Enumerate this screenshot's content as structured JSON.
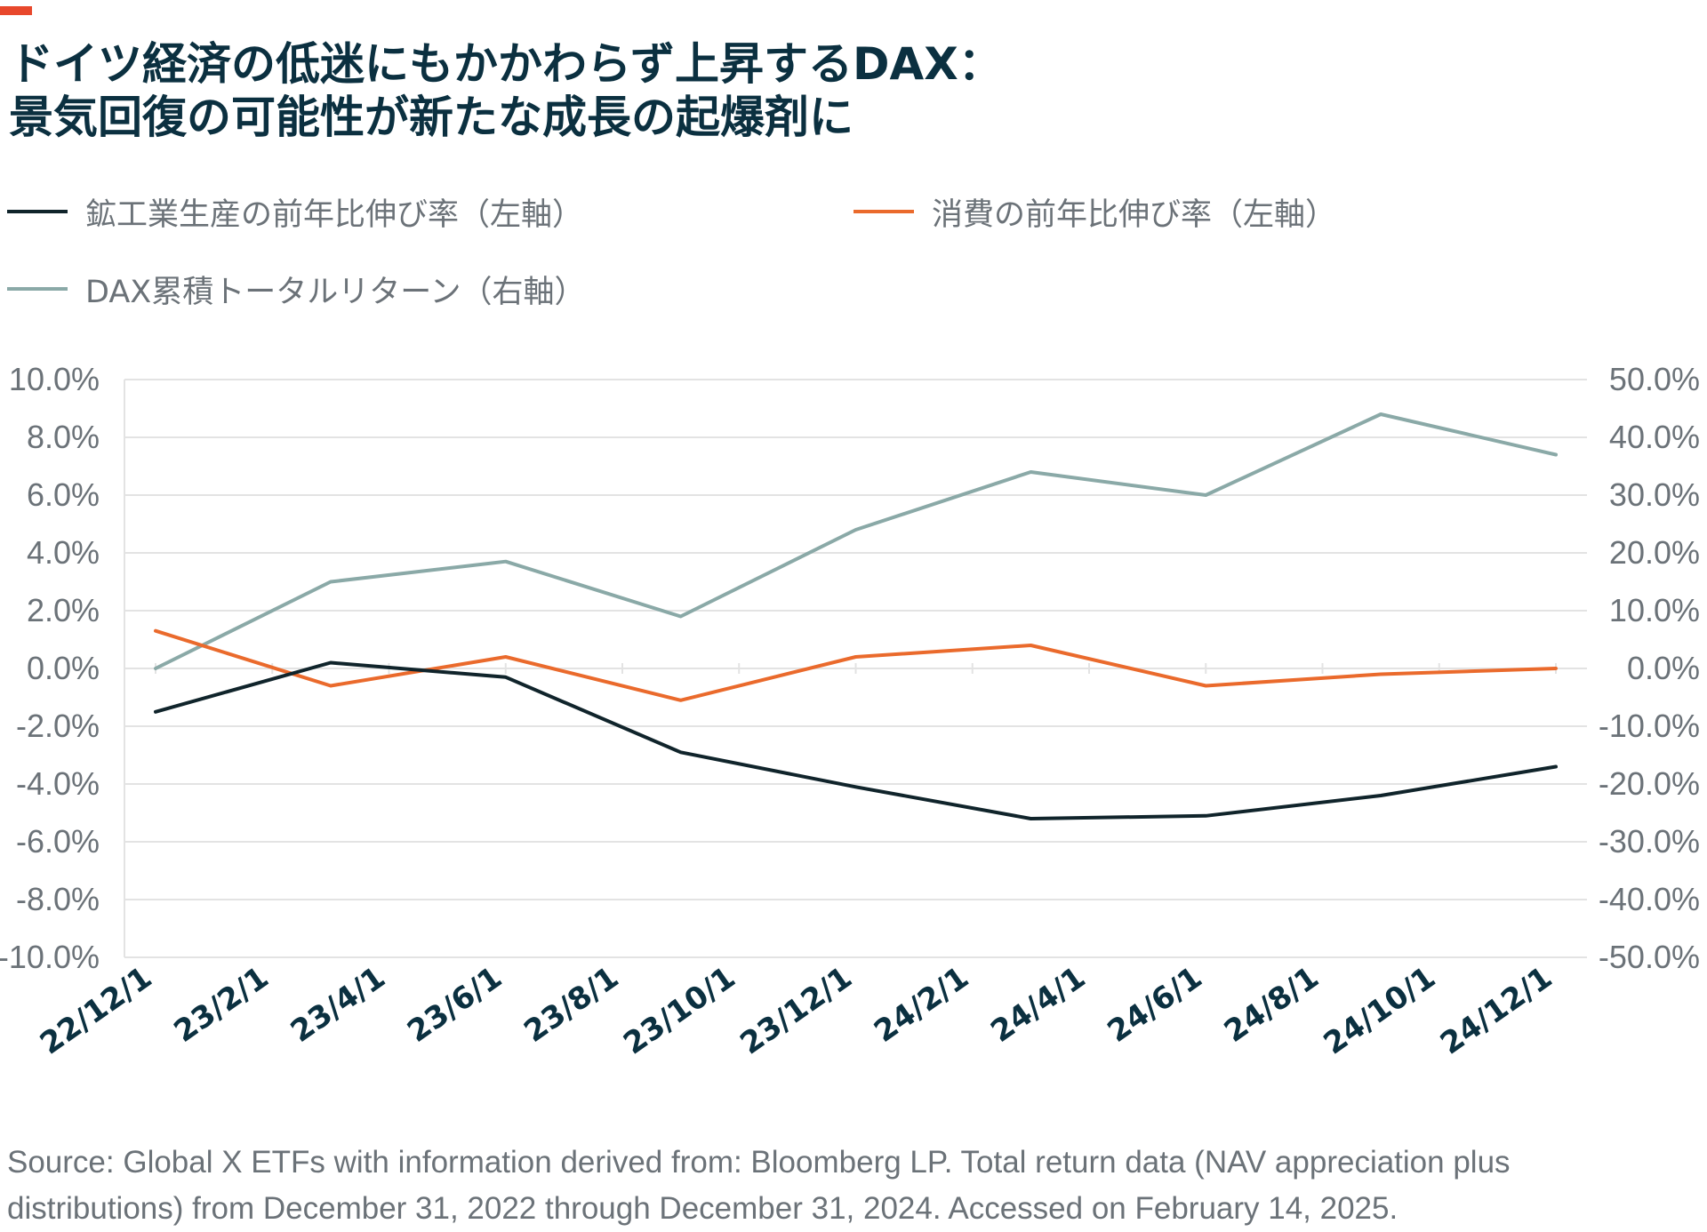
{
  "title_lines": [
    "ドイツ経済の低迷にもかかわらず上昇するDAX：",
    "景気回復の可能性が新たな成長の起爆剤に"
  ],
  "colors": {
    "accent": "#e8482c",
    "title": "#0b3040",
    "industrial": "#10242b",
    "consumption": "#ea6a2c",
    "dax": "#8aa9a7",
    "grid": "#e3e3e3",
    "axis_text": "#6b7278",
    "x_label": "#0b3040"
  },
  "legend": [
    {
      "label": "鉱工業生産の前年比伸び率（左軸）",
      "color": "#10242b"
    },
    {
      "label": "消費の前年比伸び率（左軸）",
      "color": "#ea6a2c"
    },
    {
      "label": "DAX累積トータルリターン（右軸）",
      "color": "#8aa9a7"
    }
  ],
  "source": "Source: Global X ETFs with information derived from: Bloomberg LP. Total return data (NAV appreciation plus distributions) from December 31, 2022 through December 31, 2024. Accessed on February 14, 2025.",
  "chart_data": {
    "type": "line",
    "x_tick_labels": [
      "22/12/1",
      "23/2/1",
      "23/4/1",
      "23/6/1",
      "23/8/1",
      "23/10/1",
      "23/12/1",
      "24/2/1",
      "24/4/1",
      "24/6/1",
      "24/8/1",
      "24/10/1",
      "24/12/1"
    ],
    "left_axis": {
      "ylim": [
        -10,
        10
      ],
      "ticks": [
        10,
        8,
        6,
        4,
        2,
        0,
        -2,
        -4,
        -6,
        -8,
        -10
      ],
      "tick_labels": [
        "10.0%",
        "8.0%",
        "6.0%",
        "4.0%",
        "2.0%",
        "0.0%",
        "-2.0%",
        "-4.0%",
        "-6.0%",
        "-8.0%",
        "-10.0%"
      ]
    },
    "right_axis": {
      "ylim": [
        -50,
        50
      ],
      "ticks": [
        50,
        40,
        30,
        20,
        10,
        0,
        -10,
        -20,
        -30,
        -40,
        -50
      ],
      "tick_labels": [
        "50.0%",
        "40.0%",
        "30.0%",
        "20.0%",
        "10.0%",
        "0.0%",
        "-10.0%",
        "-20.0%",
        "-30.0%",
        "-40.0%",
        "-50.0%"
      ]
    },
    "grid": true,
    "legend_position": "top",
    "series": [
      {
        "name": "鉱工業生産の前年比伸び率（左軸）",
        "axis": "left",
        "x": [
          "22/12/1",
          "23/3/1",
          "23/6/1",
          "23/9/1",
          "23/12/1",
          "24/3/1",
          "24/6/1",
          "24/9/1",
          "24/12/1"
        ],
        "values": [
          -1.5,
          0.2,
          -0.3,
          -2.9,
          -4.1,
          -5.2,
          -5.1,
          -4.4,
          -3.4
        ]
      },
      {
        "name": "消費の前年比伸び率（左軸）",
        "axis": "left",
        "x": [
          "22/12/1",
          "23/3/1",
          "23/6/1",
          "23/9/1",
          "23/12/1",
          "24/3/1",
          "24/6/1",
          "24/9/1",
          "24/12/1"
        ],
        "values": [
          1.3,
          -0.6,
          0.4,
          -1.1,
          0.4,
          0.8,
          -0.6,
          -0.2,
          0.0
        ]
      },
      {
        "name": "DAX累積トータルリターン（右軸）",
        "axis": "right",
        "x": [
          "22/12/1",
          "23/3/1",
          "23/6/1",
          "23/9/1",
          "23/12/1",
          "24/3/1",
          "24/6/1",
          "24/9/1",
          "24/12/1"
        ],
        "values": [
          0.0,
          15.0,
          18.5,
          9.0,
          24.0,
          34.0,
          30.0,
          44.0,
          37.0
        ]
      }
    ]
  }
}
